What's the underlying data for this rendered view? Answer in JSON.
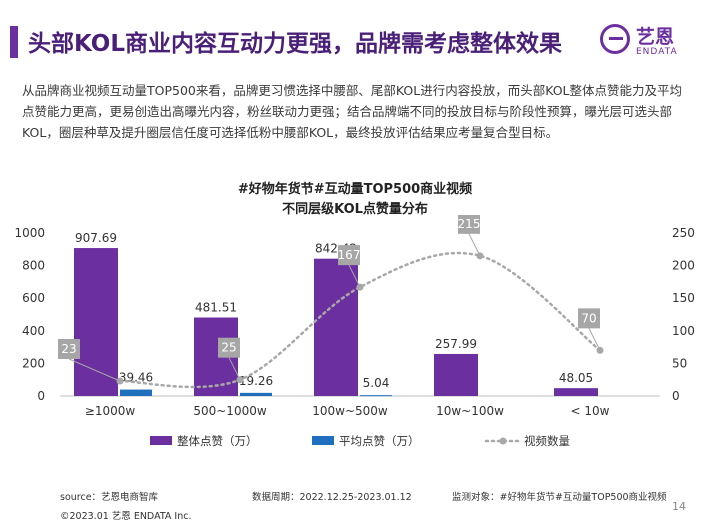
{
  "header": {
    "title": "头部KOL商业内容互动力更强，品牌需考虑整体效果"
  },
  "logo": {
    "cn": "艺恩",
    "en": "ENDATA"
  },
  "intro": "从品牌商业视频互动量TOP500来看，品牌更习惯选择中腰部、尾部KOL进行内容投放，而头部KOL整体点赞能力及平均点赞能力更高，更易创造出高曝光内容，粉丝联动力更强；结合品牌端不同的投放目标与阶段性预算，曝光层可选头部KOL，圈层种草及提升圈层信任度可选择低粉中腰部KOL，最终投放评估结果应考量复合型目标。",
  "chart_data": {
    "type": "bar",
    "title": "#好物年货节#互动量TOP500商业视频",
    "subtitle": "不同层级KOL点赞量分布",
    "categories": [
      "≥1000w",
      "500~1000w",
      "100w~500w",
      "10w~100w",
      "< 10w"
    ],
    "ylim": [
      0,
      1000
    ],
    "yticks": [
      "0",
      "200",
      "400",
      "600",
      "800",
      "1000"
    ],
    "y2lim": [
      0,
      250
    ],
    "y2ticks": [
      "0",
      "50",
      "100",
      "150",
      "200",
      "250"
    ],
    "legend_position": "bottom",
    "series": [
      {
        "name": "整体点赞（万）",
        "kind": "bar",
        "axis": "left",
        "color": "#6b2fa0",
        "values": [
          907.69,
          481.51,
          842.42,
          257.99,
          48.05
        ],
        "labels": [
          "907.69",
          "481.51",
          "842.42",
          "257.99",
          "48.05"
        ]
      },
      {
        "name": "平均点赞（万）",
        "kind": "bar",
        "axis": "left",
        "color": "#1f6fbf",
        "values": [
          39.46,
          19.26,
          5.04,
          null,
          null
        ],
        "labels": [
          "39.46",
          "19.26",
          "5.04",
          "",
          ""
        ]
      },
      {
        "name": "视频数量",
        "kind": "line",
        "axis": "right",
        "color": "#a8a8a8",
        "values": [
          23,
          25,
          167,
          215,
          70
        ],
        "labels": [
          "23",
          "25",
          "167",
          "215",
          "70"
        ]
      }
    ]
  },
  "footer": {
    "source": "source：艺恩电商智库",
    "period": "数据周期：2022.12.25-2023.01.12",
    "target": "监测对象：#好物年货节#互动量TOP500商业视频",
    "copyright": "©2023.01 艺恩 ENDATA Inc.",
    "page": "14"
  }
}
